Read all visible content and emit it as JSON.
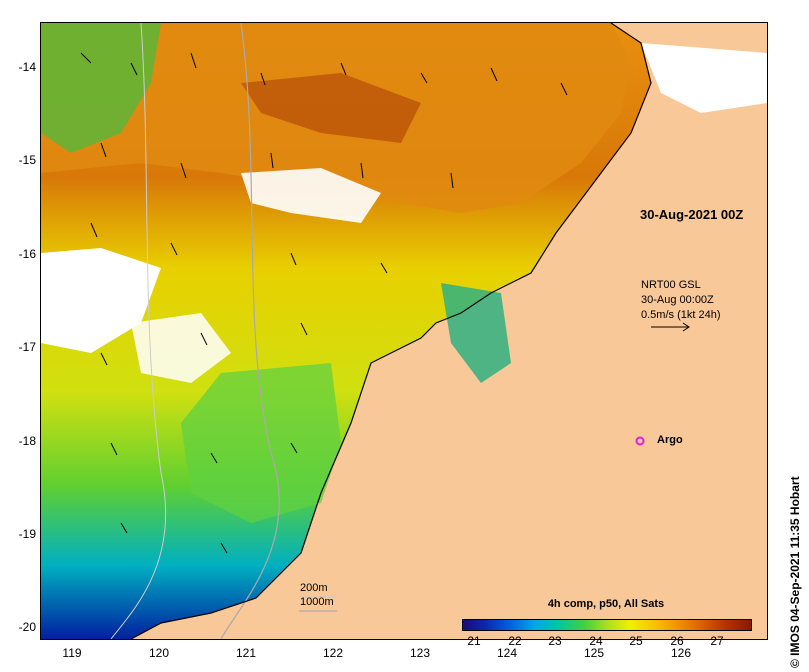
{
  "map": {
    "y_axis_labels": [
      "-14",
      "-15",
      "-16",
      "-17",
      "-18",
      "-19",
      "-20"
    ],
    "x_axis_labels": [
      "119",
      "120",
      "121",
      "122",
      "123",
      "124",
      "125",
      "126"
    ],
    "date_stamp": "30-Aug-2021 00Z",
    "current_info": {
      "line1": "NRT00 GSL",
      "line2": "30-Aug 00:00Z",
      "line3": "0.5m/s (1kt 24h)"
    },
    "argo_label": "Argo",
    "depth_legend": {
      "line1": "200m",
      "line2": "1000m"
    },
    "colorbar": {
      "title": "4h comp, p50, All Sats",
      "labels": [
        "21",
        "22",
        "23",
        "24",
        "25",
        "26",
        "27"
      ]
    },
    "credit": "IMOS 04-Sep-2021 11:35 Hobart",
    "colors": {
      "land": "#f8c898",
      "argo_marker": "#e020e0",
      "cloud": "#ffffff"
    }
  }
}
